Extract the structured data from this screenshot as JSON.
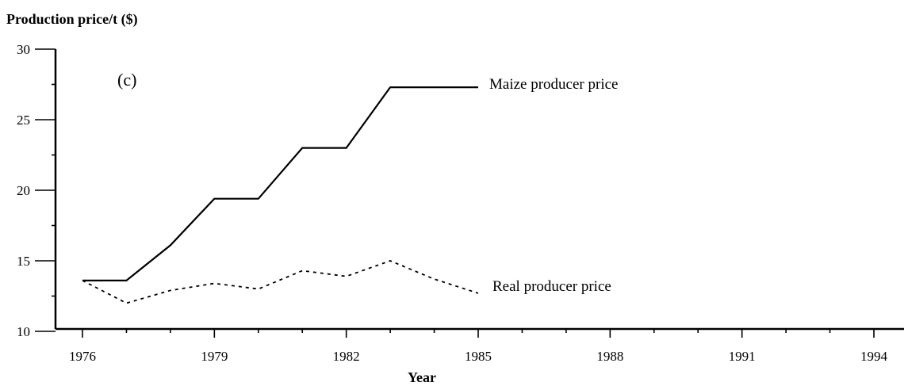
{
  "chart_data": {
    "type": "line",
    "ylabel": "Production price/t ($)",
    "xlabel": "Year",
    "panel_label": "(c)",
    "xlim": [
      1975.6,
      1995.2
    ],
    "ylim": [
      10,
      30
    ],
    "x_ticks": [
      1976,
      1979,
      1982,
      1985,
      1988,
      1991,
      1994
    ],
    "y_ticks": [
      10,
      15,
      20,
      25,
      30
    ],
    "grid": false,
    "series": [
      {
        "name": "Maize producer price",
        "style": "solid",
        "x": [
          1976,
          1977,
          1978,
          1979,
          1980,
          1981,
          1982,
          1983,
          1984,
          1985
        ],
        "y": [
          13.6,
          13.6,
          16.1,
          19.4,
          19.4,
          23.0,
          23.0,
          27.3,
          27.3,
          27.3
        ]
      },
      {
        "name": "Real producer price",
        "style": "dashed",
        "x": [
          1976,
          1977,
          1978,
          1979,
          1980,
          1981,
          1982,
          1983,
          1984,
          1985
        ],
        "y": [
          13.6,
          12.0,
          12.9,
          13.4,
          13.0,
          14.3,
          13.9,
          15.0,
          13.7,
          12.7
        ]
      }
    ]
  },
  "colors": {
    "line": "#000000",
    "background": "#ffffff"
  }
}
